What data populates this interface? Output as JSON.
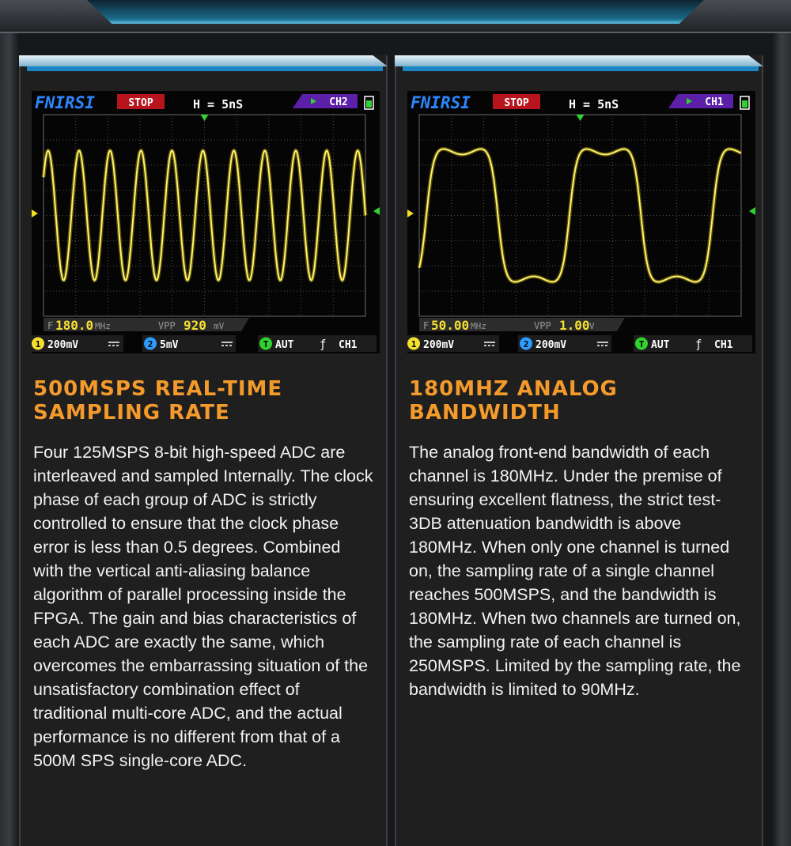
{
  "panels": [
    {
      "screen": {
        "brand": "FNIRSI",
        "status": "STOP",
        "timebase": "H = 5nS",
        "active_channel": "CH2",
        "frequency": {
          "label": "F",
          "value": "180.0",
          "unit": "MHz"
        },
        "vpp": {
          "label": "VPP",
          "value": "920",
          "unit": "mV"
        },
        "ch1": {
          "icon": "1",
          "scale": "200mV"
        },
        "ch2": {
          "icon": "2",
          "scale": "5mV"
        },
        "trigger": {
          "icon": "T",
          "mode": "AUT",
          "edge": "ƒ",
          "source": "CH1"
        }
      },
      "heading": [
        "500MSPS REAL-TIME",
        "SAMPLING RATE"
      ],
      "body": "Four 125MSPS 8-bit high-speed ADC are interleaved and sampled Internally. The clock phase of each group of ADC is strictly controlled to ensure that the clock phase error is less than 0.5 degrees. Combined with the vertical anti-aliasing balance algorithm of parallel processing inside the FPGA. The gain and bias characteristics of each ADC are exactly the same, which overcomes the embarrassing situation of the unsatisfactory combination effect of traditional multi-core ADC, and the actual performance is no different from that of a 500M SPS single-core ADC."
    },
    {
      "screen": {
        "brand": "FNIRSI",
        "status": "STOP",
        "timebase": "H = 5nS",
        "active_channel": "CH1",
        "frequency": {
          "label": "F",
          "value": "50.00",
          "unit": "MHz"
        },
        "vpp": {
          "label": "VPP",
          "value": "1.00",
          "unit": "V"
        },
        "ch1": {
          "icon": "1",
          "scale": "200mV"
        },
        "ch2": {
          "icon": "2",
          "scale": "200mV"
        },
        "trigger": {
          "icon": "T",
          "mode": "AUT",
          "edge": "ƒ",
          "source": "CH1"
        }
      },
      "heading": [
        "180MHZ ANALOG",
        "BANDWIDTH"
      ],
      "body": "The analog front-end bandwidth of each channel is 180MHz. Under the premise of ensuring excellent flatness, the strict test-3DB attenuation bandwidth is above 180MHz. When only one channel is turned on, the sampling rate of a single channel reaches 500MSPS, and the bandwidth is 180MHz. When two channels are turned on, the sampling rate of each channel is 250MSPS. Limited by the sampling rate, the bandwidth is limited to 90MHz."
    }
  ]
}
